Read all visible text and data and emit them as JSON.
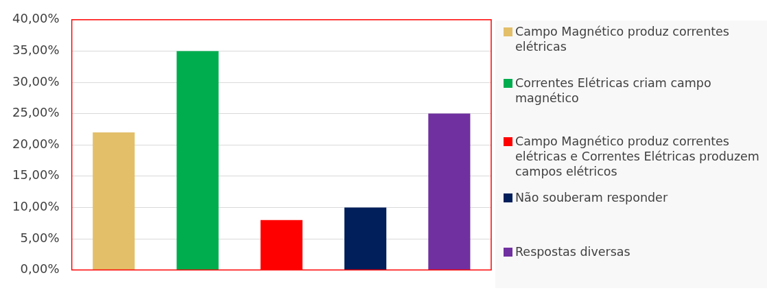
{
  "chart_data": {
    "type": "bar",
    "categories": [
      null,
      null,
      null,
      null,
      null
    ],
    "series": [
      {
        "name": "Campo Magnético produz correntes elétricas",
        "color": "#e3bf6a",
        "values": [
          22,
          null,
          null,
          null,
          null
        ]
      },
      {
        "name": "Correntes Elétricas criam campo magnético",
        "color": "#00ad4e",
        "values": [
          null,
          35,
          null,
          null,
          null
        ]
      },
      {
        "name": "Campo Magnético produz correntes elétricas  e Correntes Elétricas produzem campos elétricos",
        "color": "#ff0000",
        "values": [
          null,
          null,
          8,
          null,
          null
        ]
      },
      {
        "name": "Não souberam responder",
        "color": "#001f5b",
        "values": [
          null,
          null,
          null,
          10,
          null
        ]
      },
      {
        "name": "Respostas diversas",
        "color": "#7030a0",
        "values": [
          null,
          null,
          null,
          null,
          25
        ]
      }
    ],
    "ylim": [
      0,
      40
    ],
    "yticks": [
      {
        "value": 0,
        "label": "0,00%"
      },
      {
        "value": 5,
        "label": "5,00%"
      },
      {
        "value": 10,
        "label": "10,00%"
      },
      {
        "value": 15,
        "label": "15,00%"
      },
      {
        "value": 20,
        "label": "20,00%"
      },
      {
        "value": 25,
        "label": "25,00%"
      },
      {
        "value": 30,
        "label": "30,00%"
      },
      {
        "value": 35,
        "label": "35,00%"
      },
      {
        "value": 40,
        "label": "40,00%"
      }
    ],
    "grid": "y",
    "legend": "right"
  }
}
